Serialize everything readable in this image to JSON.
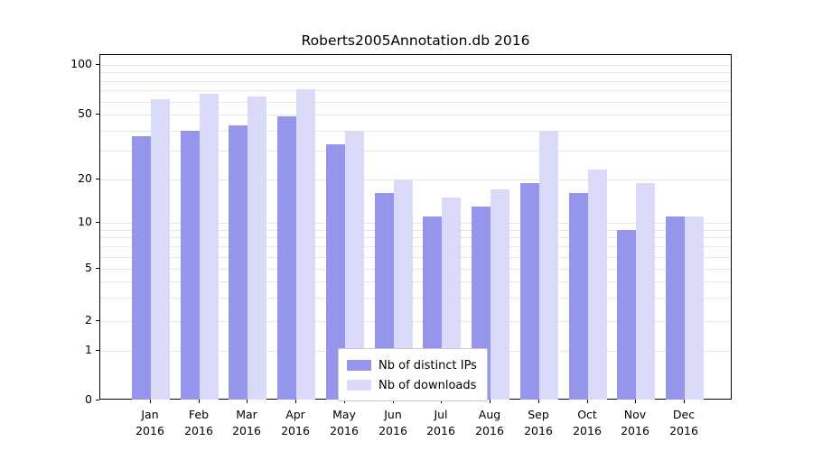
{
  "title": "Roberts2005Annotation.db 2016",
  "chart_data": {
    "type": "bar",
    "title": "Roberts2005Annotation.db 2016",
    "categories": [
      "Jan 2016",
      "Feb 2016",
      "Mar 2016",
      "Apr 2016",
      "May 2016",
      "Jun 2016",
      "Jul 2016",
      "Aug 2016",
      "Sep 2016",
      "Oct 2016",
      "Nov 2016",
      "Dec 2016"
    ],
    "series": [
      {
        "name": "Nb of distinct IPs",
        "color": "#9595ec",
        "values": [
          37,
          40,
          43,
          49,
          33,
          16,
          11,
          13,
          19,
          16,
          9,
          11
        ]
      },
      {
        "name": "Nb of downloads",
        "color": "#d9d9f8",
        "values": [
          62,
          67,
          64,
          71,
          40,
          20,
          15,
          17,
          40,
          23,
          19,
          11
        ]
      }
    ],
    "xlabel": "",
    "ylabel": "",
    "yscale": "symlog",
    "yticks": [
      0,
      1,
      2,
      5,
      10,
      20,
      50,
      100
    ],
    "ylim": [
      0,
      110
    ],
    "grid": "horizontal minor+major, light gray",
    "legend_position": "lower center"
  },
  "x_axis": {
    "months": [
      "Jan",
      "Feb",
      "Mar",
      "Apr",
      "May",
      "Jun",
      "Jul",
      "Aug",
      "Sep",
      "Oct",
      "Nov",
      "Dec"
    ],
    "year": "2016"
  },
  "y_axis": {
    "tick_labels": [
      "100",
      "50",
      "20",
      "10",
      "5",
      "2",
      "1",
      "0"
    ]
  },
  "legend": {
    "items": [
      {
        "label": "Nb of distinct IPs",
        "color": "#9595ec"
      },
      {
        "label": "Nb of downloads",
        "color": "#d9d9f8"
      }
    ]
  }
}
